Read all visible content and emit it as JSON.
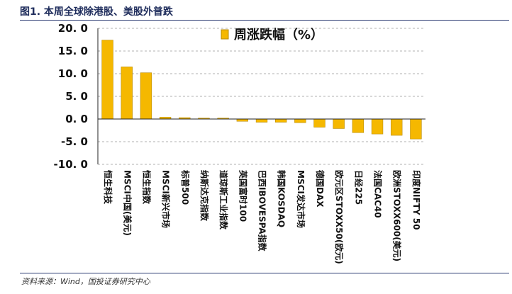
{
  "header": {
    "title": "图1. 本周全球除港股、美股外普跌"
  },
  "footer": {
    "source": "资料来源：Wind，国投证券研究中心"
  },
  "colors": {
    "bar": "#f5b800",
    "bar_stroke": "#b88a00",
    "grid": "#999999",
    "axis": "#222222"
  },
  "chart_data": {
    "type": "bar",
    "title": "",
    "xlabel": "",
    "ylabel": "",
    "ylim": [
      -10,
      20
    ],
    "yticks": [
      20,
      15,
      10,
      5,
      0,
      -5,
      -10
    ],
    "ytick_labels": [
      "20. 0",
      "15. 0",
      "10. 0",
      "5. 0",
      "0. 0",
      "-5. 0",
      "-10. 0"
    ],
    "grid": true,
    "legend": {
      "position": "top-center",
      "entries": [
        "周涨跌幅（%）"
      ]
    },
    "categories": [
      "恒生科技",
      "MSCI中国(美元)",
      "恒生指数",
      "MSCI新兴市场",
      "标普500",
      "纳斯达克指数",
      "道琼斯工业指数",
      "英国富时100",
      "巴西IBOVESPA指数",
      "韩国KOSDAQ",
      "MSCI发达市场",
      "德国DAX",
      "欧元区STOXX50(欧元)",
      "日经225",
      "法国CAC40",
      "欧洲STOXX600(美元)",
      "印度NIFTY 50"
    ],
    "series": [
      {
        "name": "周涨跌幅（%）",
        "values": [
          17.4,
          11.5,
          10.2,
          0.4,
          0.3,
          0.2,
          0.2,
          -0.5,
          -0.7,
          -0.7,
          -0.8,
          -1.8,
          -2.1,
          -3.0,
          -3.3,
          -3.6,
          -4.4
        ]
      }
    ]
  }
}
